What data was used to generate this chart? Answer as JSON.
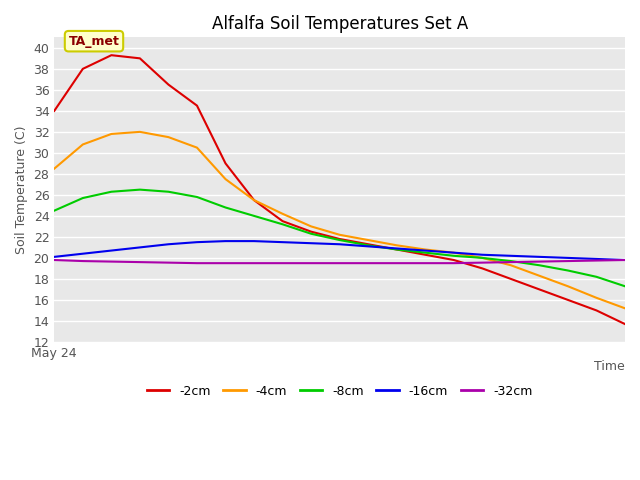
{
  "title": "Alfalfa Soil Temperatures Set A",
  "ylabel": "Soil Temperature (C)",
  "xlabel": "Time",
  "x_label_start": "May 24",
  "annotation_text": "TA_met",
  "ylim": [
    12,
    41
  ],
  "yticks": [
    12,
    14,
    16,
    18,
    20,
    22,
    24,
    26,
    28,
    30,
    32,
    34,
    36,
    38,
    40
  ],
  "fig_facecolor": "#ffffff",
  "ax_facecolor": "#e8e8e8",
  "grid_color": "#ffffff",
  "series": {
    "-2cm": {
      "color": "#dd0000",
      "x": [
        0,
        1,
        2,
        3,
        4,
        5,
        6,
        7,
        8,
        9,
        10,
        11,
        12,
        13,
        14,
        15,
        16,
        17,
        18,
        19,
        20
      ],
      "y": [
        34.0,
        38.0,
        39.3,
        39.0,
        36.5,
        34.5,
        29.0,
        25.5,
        23.5,
        22.5,
        21.8,
        21.3,
        20.8,
        20.3,
        19.8,
        19.0,
        18.0,
        17.0,
        16.0,
        15.0,
        13.7
      ]
    },
    "-4cm": {
      "color": "#ff9900",
      "x": [
        0,
        1,
        2,
        3,
        4,
        5,
        6,
        7,
        8,
        9,
        10,
        11,
        12,
        13,
        14,
        15,
        16,
        17,
        18,
        19,
        20
      ],
      "y": [
        28.5,
        30.8,
        31.8,
        32.0,
        31.5,
        30.5,
        27.5,
        25.5,
        24.2,
        23.0,
        22.2,
        21.7,
        21.2,
        20.8,
        20.5,
        20.0,
        19.3,
        18.3,
        17.3,
        16.2,
        15.2
      ]
    },
    "-8cm": {
      "color": "#00cc00",
      "x": [
        0,
        1,
        2,
        3,
        4,
        5,
        6,
        7,
        8,
        9,
        10,
        11,
        12,
        13,
        14,
        15,
        16,
        17,
        18,
        19,
        20
      ],
      "y": [
        24.5,
        25.7,
        26.3,
        26.5,
        26.3,
        25.8,
        24.8,
        24.0,
        23.2,
        22.3,
        21.7,
        21.2,
        20.8,
        20.5,
        20.2,
        20.0,
        19.7,
        19.3,
        18.8,
        18.2,
        17.3
      ]
    },
    "-16cm": {
      "color": "#0000ee",
      "x": [
        0,
        1,
        2,
        3,
        4,
        5,
        6,
        7,
        8,
        9,
        10,
        11,
        12,
        13,
        14,
        15,
        16,
        17,
        18,
        19,
        20
      ],
      "y": [
        20.1,
        20.4,
        20.7,
        21.0,
        21.3,
        21.5,
        21.6,
        21.6,
        21.5,
        21.4,
        21.3,
        21.1,
        20.9,
        20.7,
        20.5,
        20.3,
        20.2,
        20.1,
        20.0,
        19.9,
        19.8
      ]
    },
    "-32cm": {
      "color": "#aa00aa",
      "x": [
        0,
        1,
        2,
        3,
        4,
        5,
        6,
        7,
        8,
        9,
        10,
        11,
        12,
        13,
        14,
        15,
        16,
        17,
        18,
        19,
        20
      ],
      "y": [
        19.8,
        19.7,
        19.65,
        19.6,
        19.55,
        19.5,
        19.5,
        19.5,
        19.5,
        19.5,
        19.5,
        19.5,
        19.5,
        19.5,
        19.5,
        19.55,
        19.6,
        19.65,
        19.7,
        19.75,
        19.8
      ]
    }
  },
  "legend_order": [
    "-2cm",
    "-4cm",
    "-8cm",
    "-16cm",
    "-32cm"
  ],
  "annotation_facecolor": "#ffffcc",
  "annotation_edgecolor": "#cccc00",
  "annotation_textcolor": "#8B0000",
  "title_fontsize": 12,
  "ylabel_fontsize": 9,
  "tick_fontsize": 9
}
